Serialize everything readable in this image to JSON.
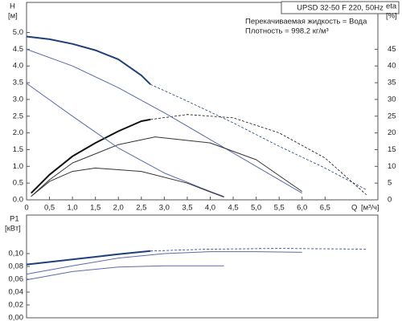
{
  "chart_data": [
    {
      "type": "line",
      "title": "UPSD 32-50 F 220, 50Hz",
      "annotations": [
        "Перекачиваемая жидкость = Вода",
        "Плотность = 998.2 кг/м³"
      ],
      "ylabel": "H",
      "yunit": "[м]",
      "y2label": "eta",
      "y2unit": "[%]",
      "xlabel": "Q",
      "xunit": "[м³/ч]",
      "xlim": [
        0,
        7.65
      ],
      "ylim": [
        0,
        5.9
      ],
      "y2lim": [
        0,
        59
      ],
      "xticks": [
        0,
        {
          "value": 0.5,
          "label": "0,5"
        },
        {
          "value": 1,
          "label": "1,0"
        },
        {
          "value": 1.5,
          "label": "1,5"
        },
        {
          "value": 2,
          "label": "2,0"
        },
        {
          "value": 2.5,
          "label": "2,5"
        },
        {
          "value": 3,
          "label": "3,0"
        },
        {
          "value": 3.5,
          "label": "3,5"
        },
        {
          "value": 4,
          "label": "4,0"
        },
        {
          "value": 4.5,
          "label": "4,5"
        },
        {
          "value": 5,
          "label": "5,0"
        },
        {
          "value": 5.5,
          "label": "5,5"
        },
        {
          "value": 6,
          "label": "6,0"
        },
        {
          "value": 6.5,
          "label": "6,5"
        }
      ],
      "yticks": [
        {
          "value": 0,
          "label": "0.0"
        },
        0.5,
        {
          "value": 1,
          "label": "1.0"
        },
        1.5,
        {
          "value": 2,
          "label": "2.0"
        },
        2.5,
        {
          "value": 3,
          "label": "3.0"
        },
        3.5,
        {
          "value": 4,
          "label": "4.0"
        },
        4.5,
        {
          "value": 5,
          "label": "5.0"
        }
      ],
      "y2ticks": [
        0,
        5,
        10,
        15,
        20,
        25,
        30,
        35,
        40,
        45
      ],
      "series": [
        {
          "color": "#1f3f7a",
          "width": 2,
          "dash": false,
          "x": [
            0,
            0.5,
            1,
            1.5,
            2,
            2.5,
            2.7
          ],
          "values": [
            4.88,
            4.8,
            4.66,
            4.47,
            4.2,
            3.72,
            3.45
          ]
        },
        {
          "color": "#1f3f7a",
          "width": 0.8,
          "dash": true,
          "x": [
            2.7,
            3.5,
            4.5,
            5.5,
            6.5,
            7.4
          ],
          "values": [
            3.45,
            2.95,
            2.3,
            1.6,
            0.95,
            0.3
          ]
        },
        {
          "color": "#111111",
          "width": 2,
          "dash": false,
          "axis": "y2",
          "x": [
            0.1,
            0.5,
            1,
            1.5,
            2,
            2.5,
            2.7
          ],
          "values": [
            2,
            7.5,
            13,
            17,
            20.5,
            23.5,
            24
          ]
        },
        {
          "color": "#111111",
          "width": 0.8,
          "dash": true,
          "axis": "y2",
          "x": [
            2.7,
            3.5,
            4.5,
            5.5,
            6.5,
            7.4
          ],
          "values": [
            24,
            25.5,
            24.5,
            20,
            12.5,
            1.5
          ]
        },
        {
          "color": "#5a6aa8",
          "width": 1,
          "dash": false,
          "x": [
            0,
            1,
            2,
            3,
            4,
            5,
            6
          ],
          "values": [
            4.5,
            4.0,
            3.35,
            2.6,
            1.8,
            1.0,
            0.2
          ]
        },
        {
          "color": "#333333",
          "width": 1,
          "dash": false,
          "axis": "y2",
          "x": [
            0.1,
            0.5,
            1,
            2,
            2.8,
            4,
            5,
            6
          ],
          "values": [
            1,
            6,
            11,
            16.5,
            18.8,
            17,
            12,
            2.5
          ]
        },
        {
          "color": "#5a6aa8",
          "width": 1,
          "dash": false,
          "x": [
            0,
            1,
            2,
            3,
            4,
            4.3
          ],
          "values": [
            3.48,
            2.5,
            1.55,
            0.8,
            0.25,
            0.1
          ]
        },
        {
          "color": "#333333",
          "width": 1,
          "dash": false,
          "axis": "y2",
          "x": [
            0.1,
            0.5,
            1,
            1.5,
            2.5,
            3.5,
            4.3
          ],
          "values": [
            1,
            5.5,
            8.5,
            9.5,
            8.5,
            5,
            0.8
          ]
        }
      ]
    },
    {
      "type": "line",
      "ylabel": "P1",
      "yunit": "[кВт]",
      "xlim": [
        0,
        7.65
      ],
      "ylim": [
        0,
        0.16
      ],
      "yticks": [
        {
          "value": 0,
          "label": "0,00"
        },
        {
          "value": 0.02,
          "label": "0,02"
        },
        {
          "value": 0.04,
          "label": "0,04"
        },
        {
          "value": 0.06,
          "label": "0,06"
        },
        {
          "value": 0.08,
          "label": "0,08"
        },
        {
          "value": 0.1,
          "label": "0,10"
        }
      ],
      "series": [
        {
          "color": "#1f3f7a",
          "width": 2,
          "dash": false,
          "x": [
            0,
            1,
            2,
            2.7
          ],
          "values": [
            0.083,
            0.091,
            0.099,
            0.104
          ]
        },
        {
          "color": "#1f3f7a",
          "width": 0.8,
          "dash": true,
          "x": [
            2.7,
            4,
            5.5,
            7.4
          ],
          "values": [
            0.104,
            0.107,
            0.108,
            0.107
          ]
        },
        {
          "color": "#5a6aa8",
          "width": 1,
          "dash": false,
          "x": [
            0,
            1,
            2,
            3,
            4,
            5,
            6
          ],
          "values": [
            0.068,
            0.081,
            0.093,
            0.1,
            0.103,
            0.103,
            0.102
          ]
        },
        {
          "color": "#5a6aa8",
          "width": 1,
          "dash": false,
          "x": [
            0,
            1,
            2,
            3,
            4.3
          ],
          "values": [
            0.059,
            0.072,
            0.079,
            0.081,
            0.081
          ]
        }
      ]
    }
  ]
}
